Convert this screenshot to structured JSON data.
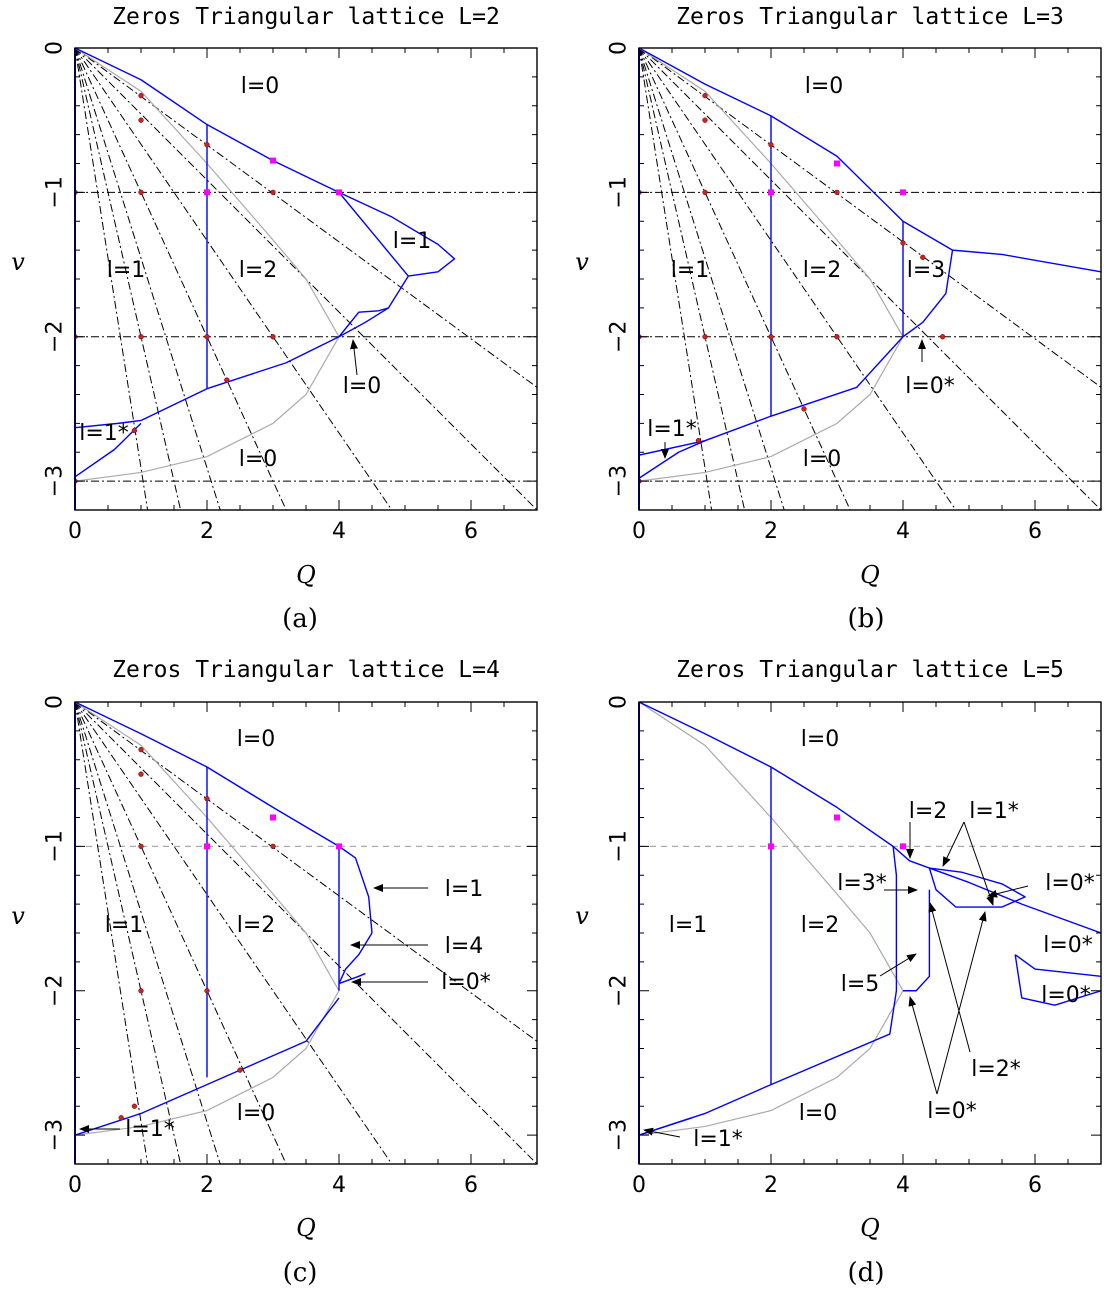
{
  "figure": {
    "colors": {
      "boundary": "#0000ff",
      "guide": "#aaaaaa",
      "dashdot": "#000000",
      "point": "#cc2222",
      "square": "#ff00ff"
    }
  },
  "chart_data": [
    {
      "type": "line",
      "title": "Zeros Triangular lattice L=2",
      "caption": "(a)",
      "xlabel": "Q",
      "ylabel": "v",
      "xlim": [
        0,
        7
      ],
      "ylim": [
        -3.2,
        0
      ],
      "xticks": [
        "0",
        "2",
        "4",
        "6"
      ],
      "yticks": [
        "0",
        "−1",
        "−2",
        "−3"
      ],
      "regions": [
        "l=0",
        "l=1",
        "l=2",
        "l=1",
        "l=0",
        "l=1*",
        "l=0"
      ],
      "boundary": [
        [
          [
            0,
            0
          ],
          [
            1,
            -0.22
          ],
          [
            2,
            -0.53
          ],
          [
            3,
            -0.78
          ],
          [
            4,
            -1.0
          ]
        ],
        [
          [
            2,
            -0.53
          ],
          [
            2,
            -2.36
          ]
        ],
        [
          [
            4,
            -1.0
          ],
          [
            5.05,
            -1.58
          ]
        ],
        [
          [
            4,
            -1.0
          ],
          [
            4.8,
            -1.17
          ],
          [
            5.5,
            -1.36
          ],
          [
            5.75,
            -1.46
          ],
          [
            5.5,
            -1.55
          ],
          [
            5.05,
            -1.58
          ]
        ],
        [
          [
            5.05,
            -1.58
          ],
          [
            4.75,
            -1.8
          ],
          [
            4.4,
            -1.9
          ],
          [
            4.0,
            -2.0
          ]
        ],
        [
          [
            4.0,
            -2.0
          ],
          [
            4.3,
            -1.83
          ],
          [
            4.6,
            -1.82
          ],
          [
            4.75,
            -1.8
          ]
        ],
        [
          [
            4.0,
            -2.0
          ],
          [
            3.2,
            -2.18
          ],
          [
            2.0,
            -2.36
          ],
          [
            1.0,
            -2.58
          ],
          [
            0.65,
            -2.6
          ],
          [
            0,
            -2.63
          ]
        ],
        [
          [
            0,
            -2.97
          ],
          [
            0.6,
            -2.78
          ],
          [
            1.0,
            -2.6
          ]
        ]
      ],
      "guide": [
        [
          0,
          0
        ],
        [
          1,
          -0.3
        ],
        [
          2,
          -0.8
        ],
        [
          3,
          -1.33
        ],
        [
          3.5,
          -1.6
        ],
        [
          4,
          -2.0
        ],
        [
          3.5,
          -2.4
        ],
        [
          3,
          -2.6
        ],
        [
          2,
          -2.83
        ],
        [
          1,
          -2.94
        ],
        [
          0,
          -3.0
        ]
      ],
      "dashdot_lines": [
        [
          [
            0,
            0
          ],
          [
            1.1,
            -3.2
          ]
        ],
        [
          [
            0,
            0
          ],
          [
            1.6,
            -3.2
          ]
        ],
        [
          [
            0,
            0
          ],
          [
            2.2,
            -3.2
          ]
        ],
        [
          [
            0,
            0
          ],
          [
            3.2,
            -3.2
          ]
        ],
        [
          [
            0,
            0
          ],
          [
            4.8,
            -3.2
          ]
        ],
        [
          [
            0,
            0
          ],
          [
            7,
            -3.2
          ]
        ],
        [
          [
            0,
            0
          ],
          [
            7,
            -2.35
          ]
        ],
        [
          [
            0,
            -1
          ],
          [
            7,
            -1
          ]
        ],
        [
          [
            0,
            -2
          ],
          [
            7,
            -2
          ]
        ],
        [
          [
            0,
            -3
          ],
          [
            7,
            -3
          ]
        ]
      ],
      "points": [
        [
          0,
          -1
        ],
        [
          1,
          -1
        ],
        [
          3,
          -1
        ],
        [
          0,
          -2
        ],
        [
          1,
          -2
        ],
        [
          2,
          -2
        ],
        [
          3,
          -2
        ],
        [
          0,
          -3
        ],
        [
          1,
          -0.33
        ],
        [
          1,
          -0.5
        ],
        [
          2,
          -0.67
        ],
        [
          2.3,
          -2.3
        ],
        [
          0.9,
          -2.65
        ]
      ],
      "squares": [
        [
          2,
          -1
        ],
        [
          3,
          -0.78
        ],
        [
          4,
          -1.0
        ]
      ]
    },
    {
      "type": "line",
      "title": "Zeros Triangular lattice L=3",
      "caption": "(b)",
      "xlabel": "Q",
      "ylabel": "v",
      "xlim": [
        0,
        7
      ],
      "ylim": [
        -3.2,
        0
      ],
      "xticks": [
        "0",
        "2",
        "4",
        "6"
      ],
      "yticks": [
        "0",
        "−1",
        "−2",
        "−3"
      ],
      "regions": [
        "l=0",
        "l=1",
        "l=2",
        "l=3",
        "l=0*",
        "l=1*",
        "l=0"
      ],
      "boundary": [
        [
          [
            0,
            0
          ],
          [
            1,
            -0.25
          ],
          [
            2,
            -0.47
          ],
          [
            3,
            -0.75
          ],
          [
            4,
            -1.2
          ]
        ],
        [
          [
            2,
            -0.47
          ],
          [
            2,
            -2.55
          ]
        ],
        [
          [
            4,
            -1.2
          ],
          [
            4,
            -2.0
          ]
        ],
        [
          [
            4,
            -1.2
          ],
          [
            4.75,
            -1.4
          ],
          [
            5.5,
            -1.43
          ],
          [
            7,
            -1.55
          ]
        ],
        [
          [
            4.75,
            -1.4
          ],
          [
            4.65,
            -1.7
          ],
          [
            4.3,
            -1.9
          ],
          [
            4.0,
            -2.0
          ]
        ],
        [
          [
            4.0,
            -2.0
          ],
          [
            3.3,
            -2.35
          ],
          [
            2.0,
            -2.55
          ],
          [
            1.0,
            -2.72
          ],
          [
            0,
            -2.82
          ]
        ],
        [
          [
            0,
            -2.98
          ],
          [
            0.6,
            -2.8
          ],
          [
            1.0,
            -2.72
          ]
        ]
      ],
      "guide": [
        [
          0,
          0
        ],
        [
          1,
          -0.3
        ],
        [
          2,
          -0.8
        ],
        [
          3,
          -1.33
        ],
        [
          3.5,
          -1.6
        ],
        [
          4,
          -2.0
        ],
        [
          3.5,
          -2.4
        ],
        [
          3,
          -2.6
        ],
        [
          2,
          -2.83
        ],
        [
          1,
          -2.94
        ],
        [
          0,
          -3.0
        ]
      ],
      "dashdot_lines": [
        [
          [
            0,
            0
          ],
          [
            1.1,
            -3.2
          ]
        ],
        [
          [
            0,
            0
          ],
          [
            1.6,
            -3.2
          ]
        ],
        [
          [
            0,
            0
          ],
          [
            2.2,
            -3.2
          ]
        ],
        [
          [
            0,
            0
          ],
          [
            3.2,
            -3.2
          ]
        ],
        [
          [
            0,
            0
          ],
          [
            4.8,
            -3.2
          ]
        ],
        [
          [
            0,
            0
          ],
          [
            7,
            -3.2
          ]
        ],
        [
          [
            0,
            0
          ],
          [
            7,
            -2.35
          ]
        ],
        [
          [
            0,
            -1
          ],
          [
            7,
            -1
          ]
        ],
        [
          [
            0,
            -2
          ],
          [
            7,
            -2
          ]
        ],
        [
          [
            0,
            -3
          ],
          [
            7,
            -3
          ]
        ]
      ],
      "points": [
        [
          0,
          -1
        ],
        [
          1,
          -1
        ],
        [
          3,
          -1
        ],
        [
          0,
          -2
        ],
        [
          1,
          -2
        ],
        [
          2,
          -2
        ],
        [
          3,
          -2
        ],
        [
          0,
          -3
        ],
        [
          1,
          -0.33
        ],
        [
          1,
          -0.5
        ],
        [
          2,
          -0.67
        ],
        [
          2.5,
          -2.5
        ],
        [
          0.9,
          -2.72
        ],
        [
          4,
          -1.35
        ],
        [
          4.3,
          -1.45
        ],
        [
          4.6,
          -2.0
        ],
        [
          0,
          0
        ]
      ],
      "squares": [
        [
          2,
          -1
        ],
        [
          3,
          -0.8
        ],
        [
          4,
          -1.0
        ]
      ]
    },
    {
      "type": "line",
      "title": "Zeros Triangular lattice L=4",
      "caption": "(c)",
      "xlabel": "Q",
      "ylabel": "v",
      "xlim": [
        0,
        7
      ],
      "ylim": [
        -3.2,
        0
      ],
      "xticks": [
        "0",
        "2",
        "4",
        "6"
      ],
      "yticks": [
        "0",
        "−1",
        "−2",
        "−3"
      ],
      "regions": [
        "l=0",
        "l=1",
        "l=2",
        "l=1",
        "l=4",
        "l=0*",
        "l=1*",
        "l=0"
      ],
      "boundary": [
        [
          [
            0,
            0
          ],
          [
            1,
            -0.22
          ],
          [
            2,
            -0.45
          ],
          [
            3,
            -0.73
          ],
          [
            4,
            -1.0
          ]
        ],
        [
          [
            2,
            -0.45
          ],
          [
            2,
            -2.6
          ]
        ],
        [
          [
            4,
            -1.0
          ],
          [
            4,
            -2.0
          ]
        ],
        [
          [
            4,
            -1.0
          ],
          [
            4.25,
            -1.08
          ],
          [
            4.45,
            -1.35
          ],
          [
            4.5,
            -1.6
          ]
        ],
        [
          [
            4.5,
            -1.6
          ],
          [
            4.3,
            -1.75
          ],
          [
            4.1,
            -1.85
          ],
          [
            4.0,
            -1.95
          ]
        ],
        [
          [
            4.0,
            -1.95
          ],
          [
            4.3,
            -1.9
          ],
          [
            4.4,
            -1.88
          ]
        ],
        [
          [
            4.0,
            -2.05
          ],
          [
            3.5,
            -2.35
          ],
          [
            2.5,
            -2.55
          ],
          [
            1.0,
            -2.85
          ],
          [
            0,
            -3.0
          ]
        ]
      ],
      "guide": [
        [
          0,
          0
        ],
        [
          1,
          -0.3
        ],
        [
          2,
          -0.8
        ],
        [
          3,
          -1.33
        ],
        [
          3.5,
          -1.6
        ],
        [
          4,
          -2.0
        ],
        [
          3.5,
          -2.4
        ],
        [
          3,
          -2.6
        ],
        [
          2,
          -2.83
        ],
        [
          1,
          -2.94
        ],
        [
          0,
          -3.0
        ]
      ],
      "gray_dashed": [
        [
          [
            0,
            -1
          ],
          [
            7,
            -1
          ]
        ]
      ],
      "dashdot_lines": [
        [
          [
            0,
            0
          ],
          [
            1.1,
            -3.2
          ]
        ],
        [
          [
            0,
            0
          ],
          [
            1.6,
            -3.2
          ]
        ],
        [
          [
            0,
            0
          ],
          [
            2.2,
            -3.2
          ]
        ],
        [
          [
            0,
            0
          ],
          [
            3.2,
            -3.2
          ]
        ],
        [
          [
            0,
            0
          ],
          [
            4.8,
            -3.2
          ]
        ],
        [
          [
            0,
            0
          ],
          [
            7,
            -3.2
          ]
        ],
        [
          [
            0,
            0
          ],
          [
            7,
            -2.35
          ]
        ]
      ],
      "points": [
        [
          1,
          -1
        ],
        [
          3,
          -1
        ],
        [
          1,
          -2
        ],
        [
          2,
          -2
        ],
        [
          1,
          -0.33
        ],
        [
          1,
          -0.5
        ],
        [
          2,
          -0.67
        ],
        [
          2.5,
          -2.55
        ],
        [
          0.9,
          -2.8
        ],
        [
          0.7,
          -2.88
        ],
        [
          0,
          0
        ]
      ],
      "squares": [
        [
          2,
          -1
        ],
        [
          3,
          -0.8
        ],
        [
          4,
          -1.0
        ]
      ]
    },
    {
      "type": "line",
      "title": "Zeros Triangular lattice L=5",
      "caption": "(d)",
      "xlabel": "Q",
      "ylabel": "v",
      "xlim": [
        0,
        7
      ],
      "ylim": [
        -3.2,
        0
      ],
      "xticks": [
        "0",
        "2",
        "4",
        "6"
      ],
      "yticks": [
        "0",
        "−1",
        "−2",
        "−3"
      ],
      "regions": [
        "l=0",
        "l=1",
        "l=2",
        "l=2",
        "l=1*",
        "l=3*",
        "l=0*",
        "l=0*",
        "l=0*",
        "l=5",
        "l=2*",
        "l=0*",
        "l=0",
        "l=1*"
      ],
      "boundary": [
        [
          [
            0,
            0
          ],
          [
            1,
            -0.22
          ],
          [
            2,
            -0.45
          ],
          [
            3,
            -0.73
          ],
          [
            3.85,
            -1.0
          ]
        ],
        [
          [
            2,
            -0.45
          ],
          [
            2,
            -2.65
          ]
        ],
        [
          [
            3.85,
            -1.0
          ],
          [
            3.9,
            -1.2
          ],
          [
            3.9,
            -2.0
          ],
          [
            3.8,
            -2.3
          ],
          [
            2.0,
            -2.65
          ],
          [
            1.0,
            -2.85
          ],
          [
            0,
            -3.0
          ]
        ],
        [
          [
            3.85,
            -1.0
          ],
          [
            4.1,
            -1.1
          ],
          [
            4.4,
            -1.15
          ],
          [
            5,
            -1.25
          ],
          [
            5.8,
            -1.4
          ],
          [
            7,
            -1.6
          ]
        ],
        [
          [
            4.4,
            -1.15
          ],
          [
            4.9,
            -1.18
          ],
          [
            5.5,
            -1.26
          ],
          [
            5.85,
            -1.35
          ],
          [
            5.5,
            -1.42
          ],
          [
            4.8,
            -1.42
          ],
          [
            4.5,
            -1.3
          ],
          [
            4.4,
            -1.15
          ]
        ],
        [
          [
            4.4,
            -1.3
          ],
          [
            4.4,
            -1.9
          ],
          [
            4.2,
            -2.0
          ],
          [
            4.0,
            -2.0
          ]
        ],
        [
          [
            5.7,
            -1.75
          ],
          [
            6.0,
            -1.85
          ],
          [
            7,
            -1.9
          ]
        ],
        [
          [
            5.7,
            -1.75
          ],
          [
            5.8,
            -2.05
          ],
          [
            6.3,
            -2.1
          ],
          [
            7,
            -2.0
          ]
        ],
        [
          [
            0,
            -3.0
          ],
          [
            0.8,
            -2.88
          ]
        ]
      ],
      "guide": [
        [
          0,
          0
        ],
        [
          1,
          -0.3
        ],
        [
          2,
          -0.8
        ],
        [
          3,
          -1.33
        ],
        [
          3.5,
          -1.6
        ],
        [
          4,
          -2.0
        ],
        [
          3.5,
          -2.4
        ],
        [
          3,
          -2.6
        ],
        [
          2,
          -2.83
        ],
        [
          1,
          -2.94
        ],
        [
          0,
          -3.0
        ]
      ],
      "gray_dashed": [
        [
          [
            0,
            -1
          ],
          [
            7,
            -1
          ]
        ]
      ],
      "dashdot_lines": [],
      "points": [],
      "squares": [
        [
          2,
          -1
        ],
        [
          3,
          -0.8
        ],
        [
          4,
          -1.0
        ]
      ]
    }
  ]
}
